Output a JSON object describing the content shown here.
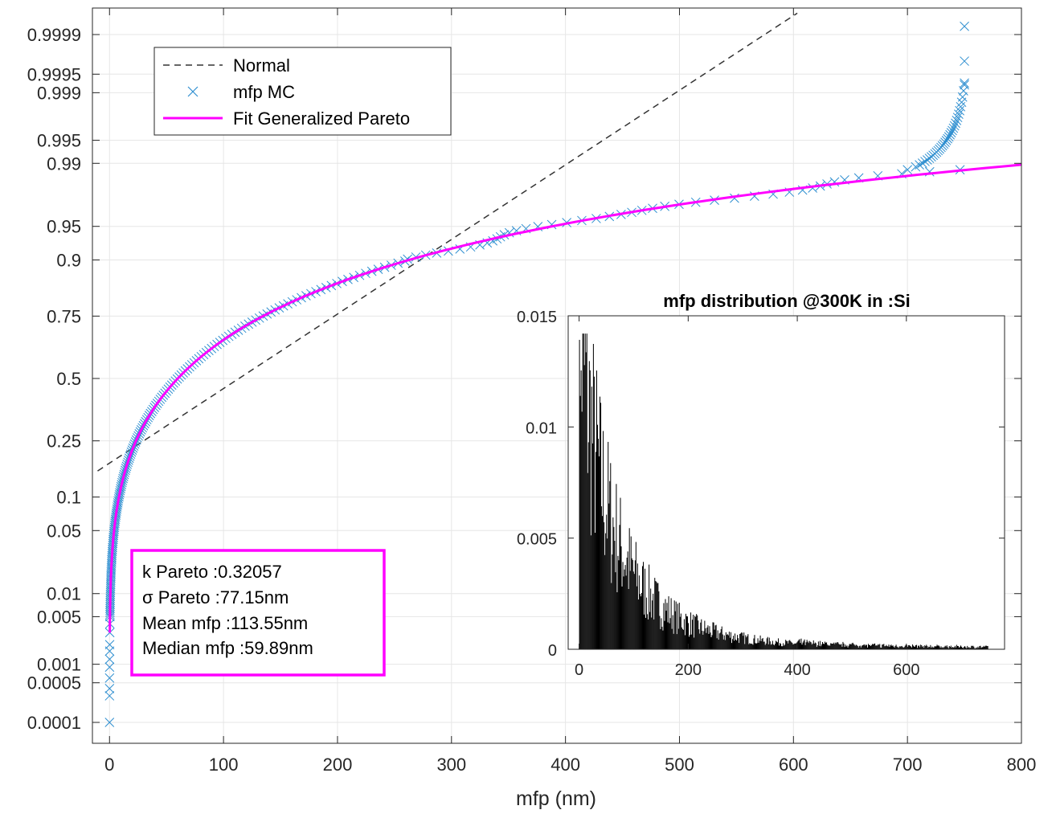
{
  "chart_data": [
    {
      "type": "scatter",
      "xlabel": "mfp (nm)",
      "ylabel": "",
      "scale": "normal-probability",
      "xlim": [
        -15,
        800
      ],
      "xticks": [
        0,
        100,
        200,
        300,
        400,
        500,
        600,
        700,
        800
      ],
      "yticks": [
        0.0001,
        0.0005,
        0.001,
        0.005,
        0.01,
        0.05,
        0.1,
        0.25,
        0.5,
        0.75,
        0.9,
        0.95,
        0.99,
        0.995,
        0.999,
        0.9995,
        0.9999
      ],
      "ytick_labels": [
        "0.0001",
        "0.0005",
        "0.001",
        "0.005",
        "0.01",
        "0.05",
        "0.1",
        "0.25",
        "0.5",
        "0.75",
        "0.9",
        "0.95",
        "0.99",
        "0.995",
        "0.999",
        "0.9995",
        "0.9999"
      ],
      "grid": true,
      "legend_position": "top-left",
      "legend": [
        "Normal",
        "mfp MC",
        "Fit Generalized Pareto"
      ],
      "series": [
        {
          "name": "Normal",
          "style": "dashed-line",
          "color": "#333333",
          "mean": 113.55,
          "std": 124.0
        },
        {
          "name": "mfp MC",
          "style": "x-markers",
          "color": "#2f8fd0"
        },
        {
          "name": "Fit Generalized Pareto",
          "style": "solid-line",
          "color": "#ff00ff",
          "k": 0.32057,
          "sigma": 77.15
        }
      ],
      "annotation": {
        "border_color": "#ff00ff",
        "lines": [
          "k Pareto :0.32057",
          "σ Pareto :77.15nm",
          "Mean mfp :113.55nm",
          "Median mfp :59.89nm"
        ]
      }
    },
    {
      "type": "bar",
      "title": "mfp distribution @300K in :Si",
      "xlim": [
        -20,
        780
      ],
      "ylim": [
        0,
        0.015
      ],
      "xticks": [
        0,
        200,
        400,
        600
      ],
      "yticks": [
        0,
        0.005,
        0.01,
        0.015
      ],
      "ytick_labels": [
        "0",
        "0.005",
        "0.01",
        "0.015"
      ],
      "grid": false,
      "bar_color": "#000000",
      "distribution": "generalized-pareto",
      "k": 0.32057,
      "sigma": 77.15,
      "peak": 0.0142,
      "x_range": [
        0,
        750
      ]
    }
  ]
}
